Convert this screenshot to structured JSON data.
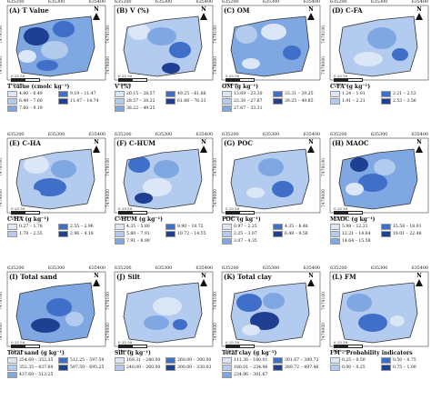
{
  "coords": {
    "x_ticks": [
      "635200",
      "635300",
      "635400"
    ],
    "y_ticks": [
      "7479100",
      "7479000"
    ],
    "scale_unit": "Meters",
    "scale_ticks": "0  25  50",
    "north": "N"
  },
  "palette": [
    "#dbe6f6",
    "#b3cbee",
    "#7fa7e2",
    "#3f6fc8",
    "#1f3f93"
  ],
  "panels": [
    {
      "label": "(A) T Value",
      "legend_title": "T value (cmolc kg⁻¹)",
      "classes": [
        "4.90 – 6.49",
        "9.19 – 11.47",
        "6.49 – 7.60",
        "11.47 – 14.74",
        "7.60 – 9.19"
      ]
    },
    {
      "label": "(B) V (%)",
      "legend_title": "V (%)",
      "classes": [
        "20.15 – 28.57",
        "49.25 – 61.86",
        "28.57 – 38.22",
        "61.86 – 76.33",
        "38.22 – 49.25"
      ]
    },
    {
      "label": "(C) OM",
      "legend_title": "OM (g kg⁻¹)",
      "classes": [
        "13.69 – 23.30",
        "33.31 – 39.25",
        "23.30 – 27.67",
        "39.25 – 49.85",
        "27.67 – 33.31"
      ]
    },
    {
      "label": "(D) C-FA",
      "legend_title": "C-FA (g kg⁻¹)",
      "classes": [
        "1.24 – 1.91",
        "2.21 – 2.53",
        "1.91 – 2.21",
        "2.53 – 3.56"
      ]
    },
    {
      "label": "(E) C-HA",
      "legend_title": "C-HA (g kg⁻¹)",
      "classes": [
        "0.27 – 1.78",
        "2.55 – 2.96",
        "1.78 – 2.55",
        "2.96 – 4.18"
      ]
    },
    {
      "label": "(F) C-HUM",
      "legend_title": "C-HUM (g kg⁻¹)",
      "classes": [
        "4.35 – 5.80",
        "8.90 – 10.72",
        "5.80 – 7.91",
        "10.72 – 14.55",
        "7.91 – 8.90"
      ]
    },
    {
      "label": "(G) POC",
      "legend_title": "POC (g kg⁻¹)",
      "classes": [
        "0.97 – 2.25",
        "4.35 – 6.48",
        "2.25 – 3.07",
        "6.48 – 9.56",
        "3.07 – 4.35"
      ]
    },
    {
      "label": "(H) MAOC",
      "legend_title": "MAOC (g kg⁻¹)",
      "classes": [
        "5.98 – 12.21",
        "15.58 – 18.01",
        "12.21 – 14.64",
        "18.01 – 22.48",
        "14.64 – 15.58"
      ]
    },
    {
      "label": "(I) Total sand",
      "legend_title": "Total sand (g kg⁻¹)",
      "classes": [
        "254.69 – 352.35",
        "512.25 – 597.59",
        "352.35 – 437.69",
        "597.59 – 695.25",
        "437.69 – 512.25"
      ]
    },
    {
      "label": "(J) Silt",
      "legend_title": "Silt (g kg⁻¹)",
      "classes": [
        "169.31 – 240.00",
        "260.00 – 300.00",
        "240.00 – 260.00",
        "300.00 – 330.03"
      ]
    },
    {
      "label": "(K) Total clay",
      "legend_title": "Total clay (g kg⁻¹)",
      "classes": [
        "111.36 – 180.01",
        "301.67 – 389.72",
        "180.01 – 234.96",
        "389.72 – 497.46",
        "234.96 – 301.67"
      ]
    },
    {
      "label": "(L) FM",
      "legend_title": "FM - Probability indicators",
      "classes": [
        "0.25 – 0.50",
        "0.50 – 0.75",
        "0.00 – 0.25",
        "0.75 – 1.00"
      ]
    }
  ]
}
